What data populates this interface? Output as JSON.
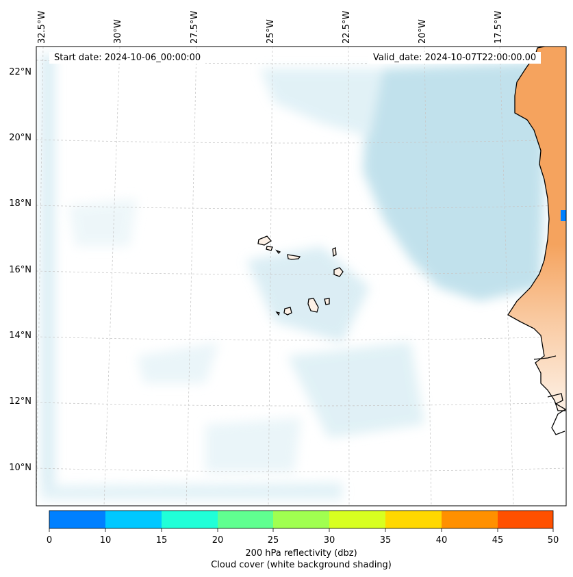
{
  "header": {
    "start_date": "Start date: 2024-10-06_00:00:00",
    "valid_date": "Valid_date: 2024-10-07T22:00:00.00"
  },
  "axes": {
    "lon_labels": [
      "32.5°W",
      "30°W",
      "27.5°W",
      "25°W",
      "22.5°W",
      "20°W",
      "17.5°W"
    ],
    "lat_labels": [
      "22°N",
      "20°N",
      "18°N",
      "16°N",
      "14°N",
      "12°N",
      "10°N"
    ]
  },
  "colorbar": {
    "ticks": [
      "0",
      "10",
      "15",
      "20",
      "25",
      "30",
      "35",
      "40",
      "45",
      "50"
    ],
    "colors": [
      "#0080ff",
      "#00c8ff",
      "#20ffd8",
      "#60ff90",
      "#a0ff50",
      "#d8ff20",
      "#ffd800",
      "#ff9000",
      "#ff5000"
    ],
    "label_line1": "200 hPa reflectivity (dbz)",
    "label_line2": "Cloud cover (white background shading)"
  },
  "map": {
    "land_color": "#f5a35e",
    "cloud_color": "#add8e6",
    "grid": "dashed-gray"
  }
}
